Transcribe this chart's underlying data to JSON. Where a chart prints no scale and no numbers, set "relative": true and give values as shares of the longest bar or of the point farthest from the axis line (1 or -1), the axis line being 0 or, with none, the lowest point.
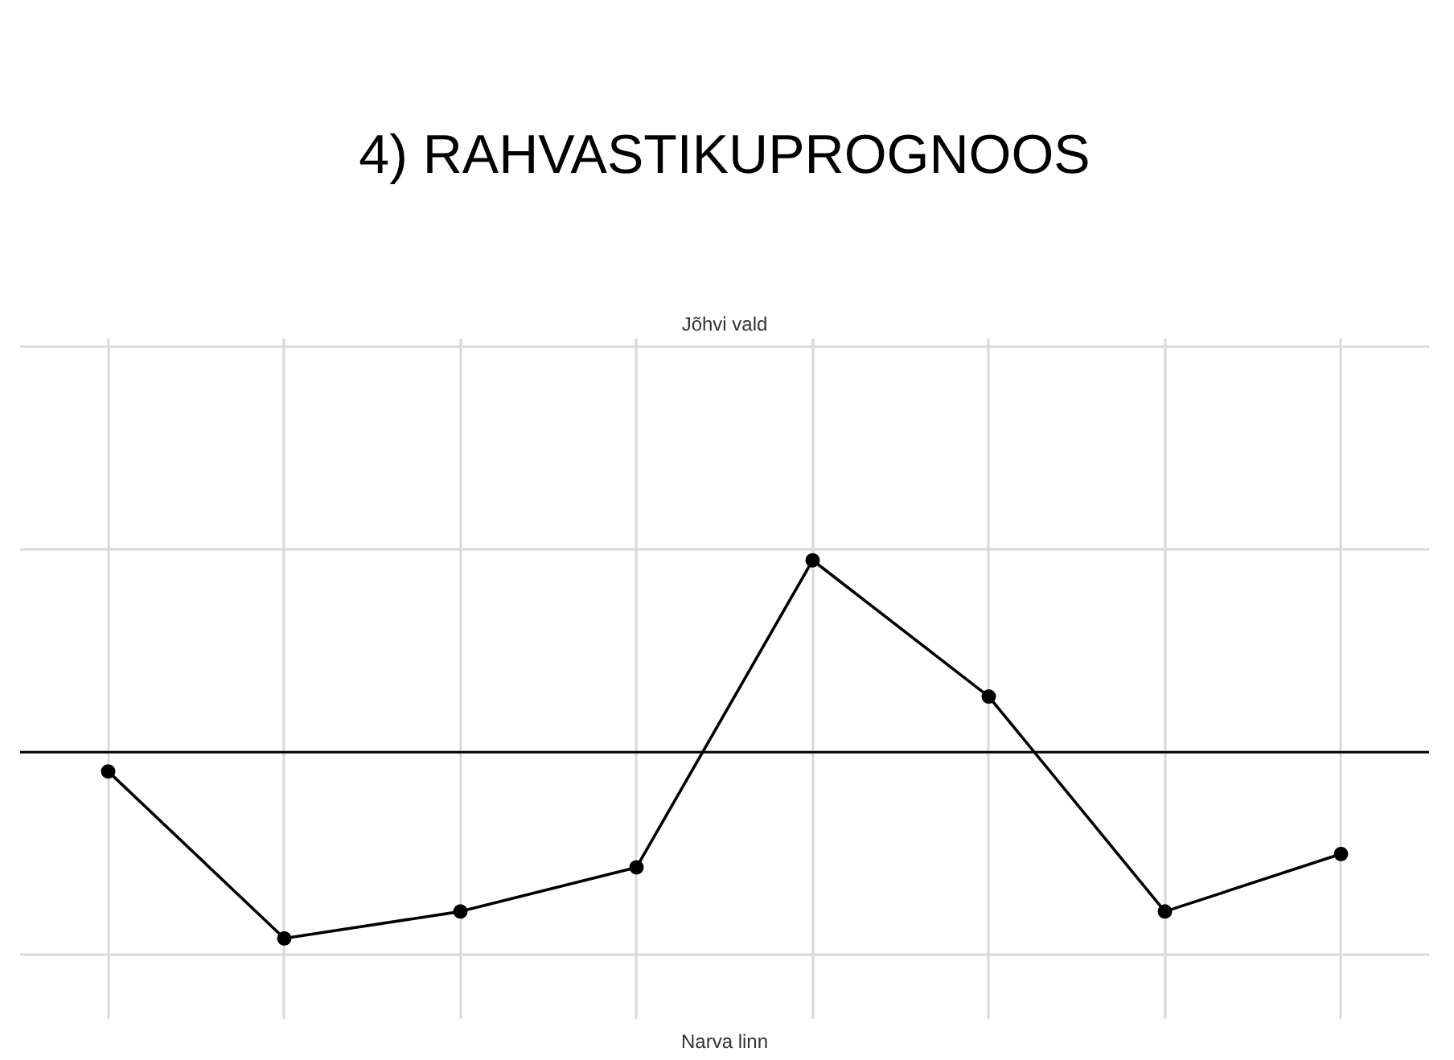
{
  "chart_data": {
    "type": "line",
    "title": "4) RAHVASTIKUPROGNOOS",
    "subtitle": "Jõhvi vald",
    "categories": [
      null,
      null,
      null,
      null,
      null,
      null,
      null,
      null
    ],
    "series": [
      {
        "color": "#000000",
        "values": [
          -0.1,
          -0.97,
          -0.83,
          -0.6,
          1,
          0.29,
          -0.83,
          -0.53
        ]
      }
    ],
    "relative": true,
    "grid": true,
    "marker": "circle",
    "line_style": "solid",
    "tick_labels": false,
    "annotations": [
      "Narva linn"
    ]
  }
}
